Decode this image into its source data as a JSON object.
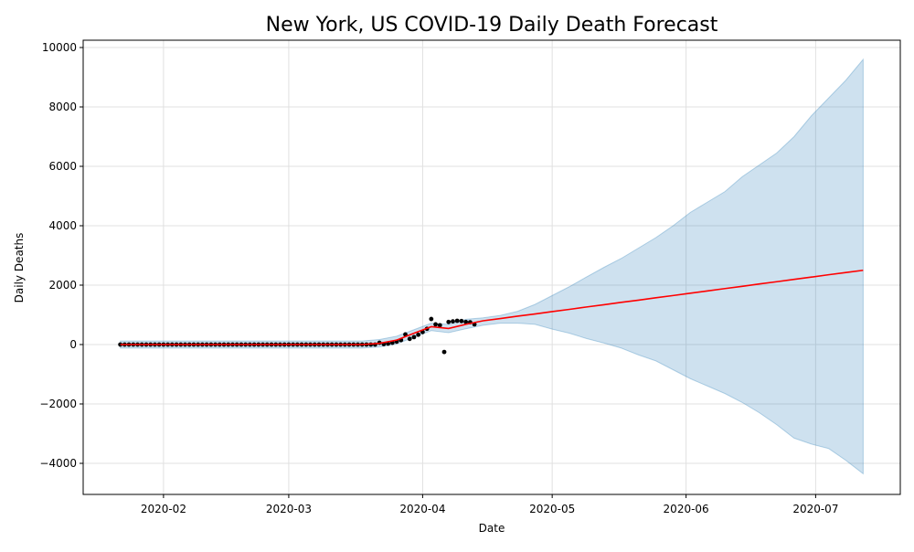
{
  "chart_data": {
    "type": "forecast",
    "title": "New York, US COVID-19 Daily Death Forecast",
    "x_label": "Date",
    "y_label": "Daily Deaths",
    "xlim": [
      12.4,
      201.6
    ],
    "ylim": [
      -5046,
      10246
    ],
    "xticks": [
      {
        "value": 31,
        "label": "2020-02"
      },
      {
        "value": 60,
        "label": "2020-03"
      },
      {
        "value": 91,
        "label": "2020-04"
      },
      {
        "value": 121,
        "label": "2020-05"
      },
      {
        "value": 152,
        "label": "2020-06"
      },
      {
        "value": 182,
        "label": "2020-07"
      }
    ],
    "yticks": [
      {
        "value": -4000,
        "label": "−4000"
      },
      {
        "value": -2000,
        "label": "−2000"
      },
      0,
      2000,
      4000,
      6000,
      8000,
      10000
    ],
    "grid": true,
    "observed": {
      "color": "#000000",
      "x": [
        21,
        22,
        23,
        24,
        25,
        26,
        27,
        28,
        29,
        30,
        31,
        32,
        33,
        34,
        35,
        36,
        37,
        38,
        39,
        40,
        41,
        42,
        43,
        44,
        45,
        46,
        47,
        48,
        49,
        50,
        51,
        52,
        53,
        54,
        55,
        56,
        57,
        58,
        59,
        60,
        61,
        62,
        63,
        64,
        65,
        66,
        67,
        68,
        69,
        70,
        71,
        72,
        73,
        74,
        75,
        76,
        77,
        78,
        79,
        80,
        81,
        82,
        83,
        84,
        85,
        86,
        87,
        88,
        89,
        90,
        91,
        92,
        93,
        94,
        95,
        96,
        97,
        98,
        99,
        100,
        101,
        102,
        103
      ],
      "values": [
        0,
        0,
        0,
        0,
        0,
        0,
        0,
        0,
        0,
        0,
        0,
        0,
        0,
        0,
        0,
        0,
        0,
        0,
        0,
        0,
        0,
        0,
        0,
        0,
        0,
        0,
        0,
        0,
        0,
        0,
        0,
        0,
        0,
        0,
        0,
        0,
        0,
        0,
        0,
        0,
        0,
        0,
        0,
        0,
        0,
        0,
        0,
        0,
        0,
        0,
        0,
        0,
        0,
        0,
        0,
        0,
        0,
        0,
        0,
        0,
        60,
        15,
        30,
        60,
        100,
        150,
        340,
        190,
        250,
        330,
        420,
        530,
        860,
        680,
        650,
        -250,
        760,
        780,
        800,
        790,
        760,
        750,
        680
      ]
    },
    "forecast": {
      "color": "#ff0000",
      "x": [
        21,
        25,
        29,
        33,
        37,
        41,
        45,
        49,
        53,
        57,
        61,
        65,
        69,
        73,
        77,
        81,
        85,
        89,
        93,
        97,
        101,
        105,
        109,
        113,
        117,
        121,
        125,
        129,
        133,
        137,
        141,
        145,
        149,
        153,
        157,
        161,
        165,
        169,
        173,
        177,
        181,
        185,
        189,
        193
      ],
      "values": [
        0,
        0,
        0,
        0,
        0,
        0,
        0,
        0,
        0,
        0,
        0,
        0,
        0,
        0,
        0,
        40,
        150,
        380,
        600,
        540,
        680,
        800,
        875,
        955,
        1030,
        1110,
        1185,
        1265,
        1340,
        1420,
        1495,
        1575,
        1650,
        1730,
        1805,
        1885,
        1960,
        2040,
        2115,
        2195,
        2270,
        2350,
        2425,
        2500
      ]
    },
    "interval": {
      "color": "#1f77b4",
      "upper": [
        120,
        120,
        120,
        120,
        120,
        120,
        120,
        120,
        120,
        120,
        120,
        120,
        120,
        120,
        120,
        170,
        280,
        500,
        720,
        680,
        850,
        900,
        980,
        1120,
        1350,
        1650,
        1950,
        2280,
        2600,
        2900,
        3250,
        3600,
        4000,
        4450,
        4800,
        5150,
        5650,
        6050,
        6450,
        7000,
        7700,
        8300,
        8900,
        9600
      ],
      "lower": [
        -120,
        -120,
        -120,
        -120,
        -120,
        -120,
        -120,
        -120,
        -120,
        -120,
        -120,
        -120,
        -120,
        -120,
        -120,
        -80,
        20,
        250,
        470,
        400,
        530,
        650,
        720,
        720,
        680,
        520,
        380,
        200,
        50,
        -120,
        -350,
        -550,
        -850,
        -1150,
        -1400,
        -1650,
        -1950,
        -2300,
        -2700,
        -3150,
        -3350,
        -3500,
        -3900,
        -4350
      ]
    }
  }
}
